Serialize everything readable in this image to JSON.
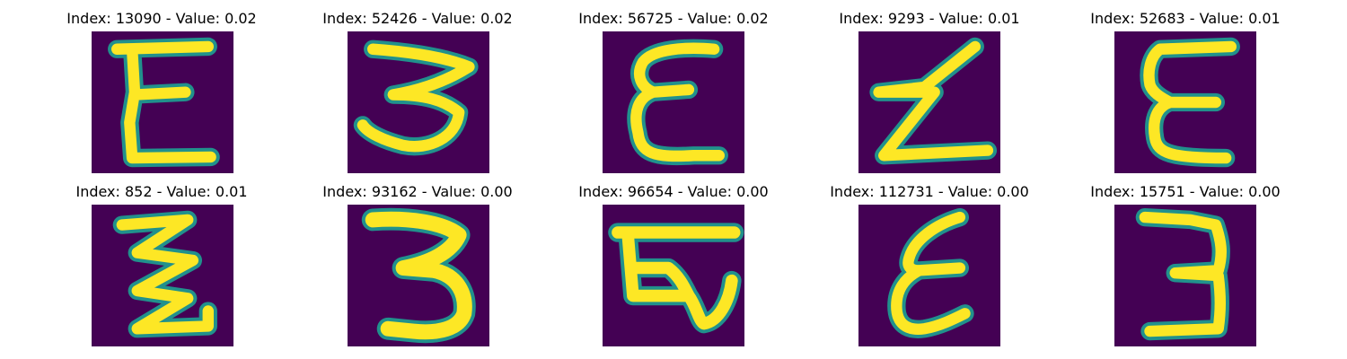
{
  "colors": {
    "background": "#440154",
    "foreground": "#fde725",
    "edge": "#21918c"
  },
  "panels": [
    {
      "title": "Index: 13090 - Value: 0.02",
      "glyph": "E"
    },
    {
      "title": "Index: 52426 - Value: 0.02",
      "glyph": "3"
    },
    {
      "title": "Index: 56725 - Value: 0.02",
      "glyph": "ε"
    },
    {
      "title": "Index: 9293 - Value: 0.01",
      "glyph": "Z"
    },
    {
      "title": "Index: 52683 - Value: 0.01",
      "glyph": "E"
    },
    {
      "title": "Index: 852 - Value: 0.01",
      "glyph": "Z"
    },
    {
      "title": "Index: 93162 - Value: 0.00",
      "glyph": "3"
    },
    {
      "title": "Index: 96654 - Value: 0.00",
      "glyph": "E"
    },
    {
      "title": "Index: 112731 - Value: 0.00",
      "glyph": "ε"
    },
    {
      "title": "Index: 15751 - Value: 0.00",
      "glyph": "3"
    }
  ]
}
